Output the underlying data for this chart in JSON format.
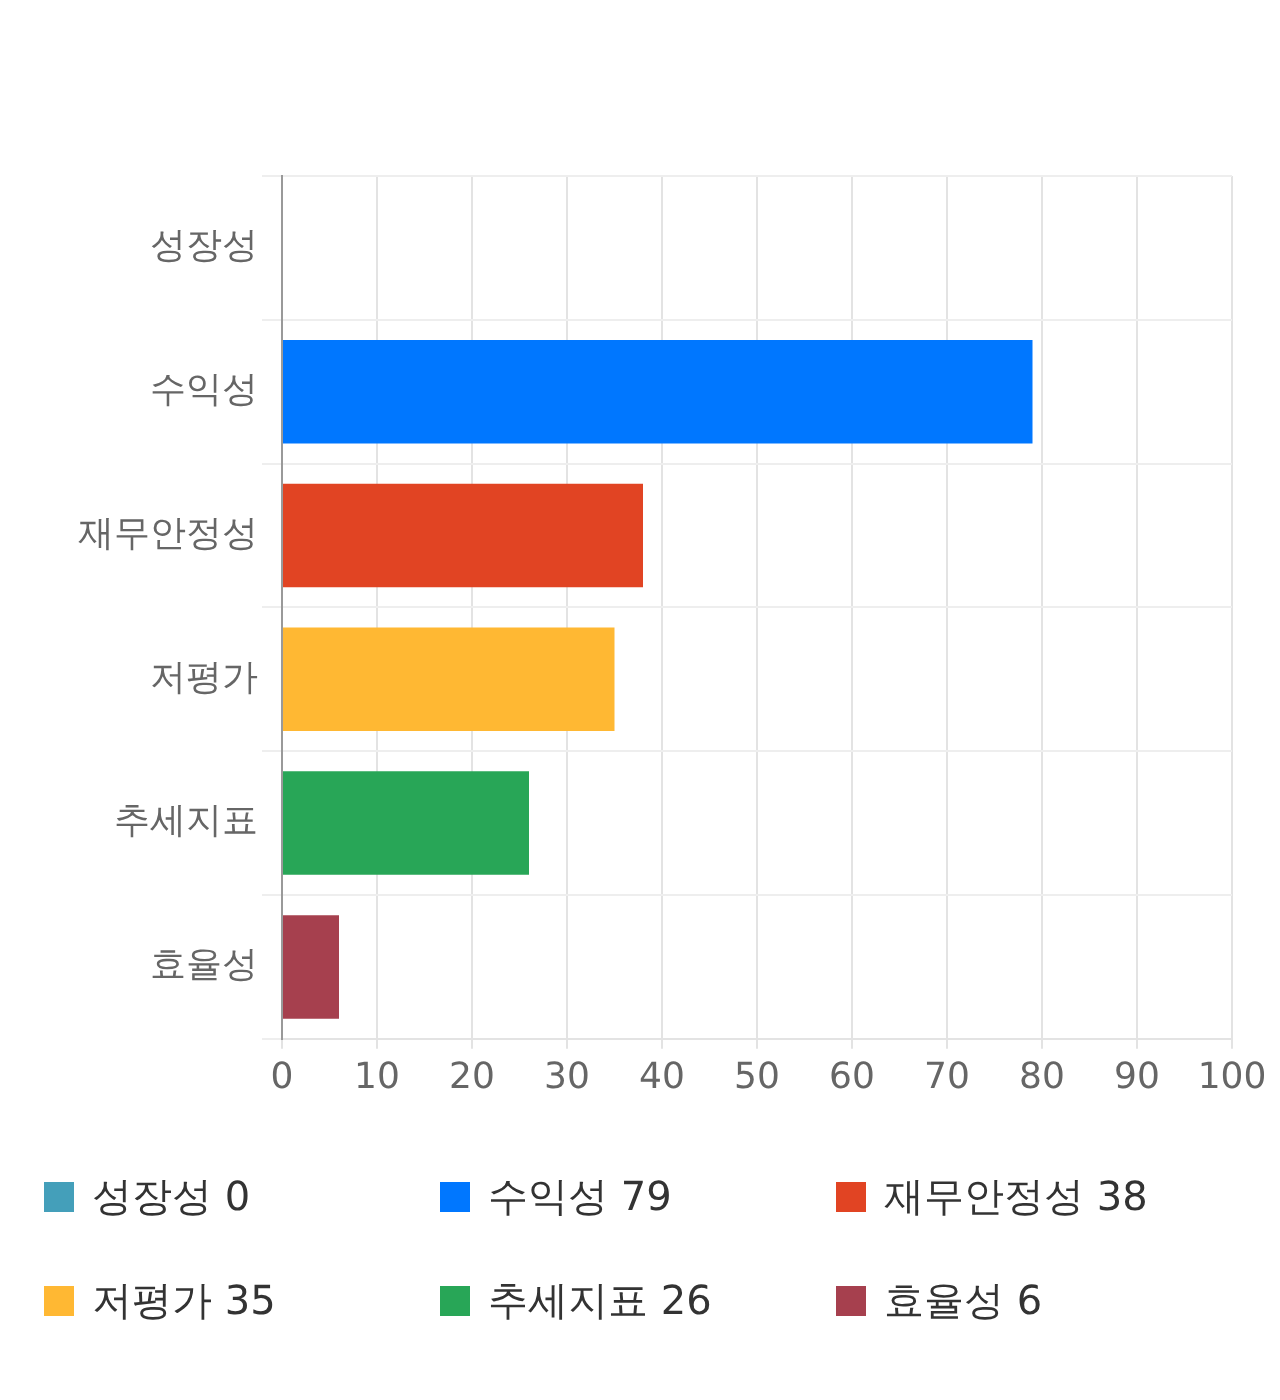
{
  "chart_data": {
    "type": "bar",
    "orientation": "horizontal",
    "categories": [
      "성장성",
      "수익성",
      "재무안정성",
      "저평가",
      "추세지표",
      "효율성"
    ],
    "series": [
      {
        "name": "성장성 0",
        "color": "#449fba",
        "values": [
          0,
          null,
          null,
          null,
          null,
          null
        ]
      },
      {
        "name": "수익성 79",
        "color": "#0077ff",
        "values": [
          null,
          79,
          null,
          null,
          null,
          null
        ]
      },
      {
        "name": "재무안정성 38",
        "color": "#e14423",
        "values": [
          null,
          null,
          38,
          null,
          null,
          null
        ]
      },
      {
        "name": "저평가 35",
        "color": "#ffb833",
        "values": [
          null,
          null,
          null,
          35,
          null,
          null
        ]
      },
      {
        "name": "추세지표 26",
        "color": "#28a657",
        "values": [
          null,
          null,
          null,
          null,
          26,
          null
        ]
      },
      {
        "name": "효율성 6",
        "color": "#a6404e",
        "values": [
          null,
          null,
          null,
          null,
          null,
          6
        ]
      }
    ],
    "xlim": [
      0,
      100
    ],
    "xticks": [
      0,
      10,
      20,
      30,
      40,
      50,
      60,
      70,
      80,
      90,
      100
    ],
    "grid": true,
    "legend": "bottom"
  }
}
